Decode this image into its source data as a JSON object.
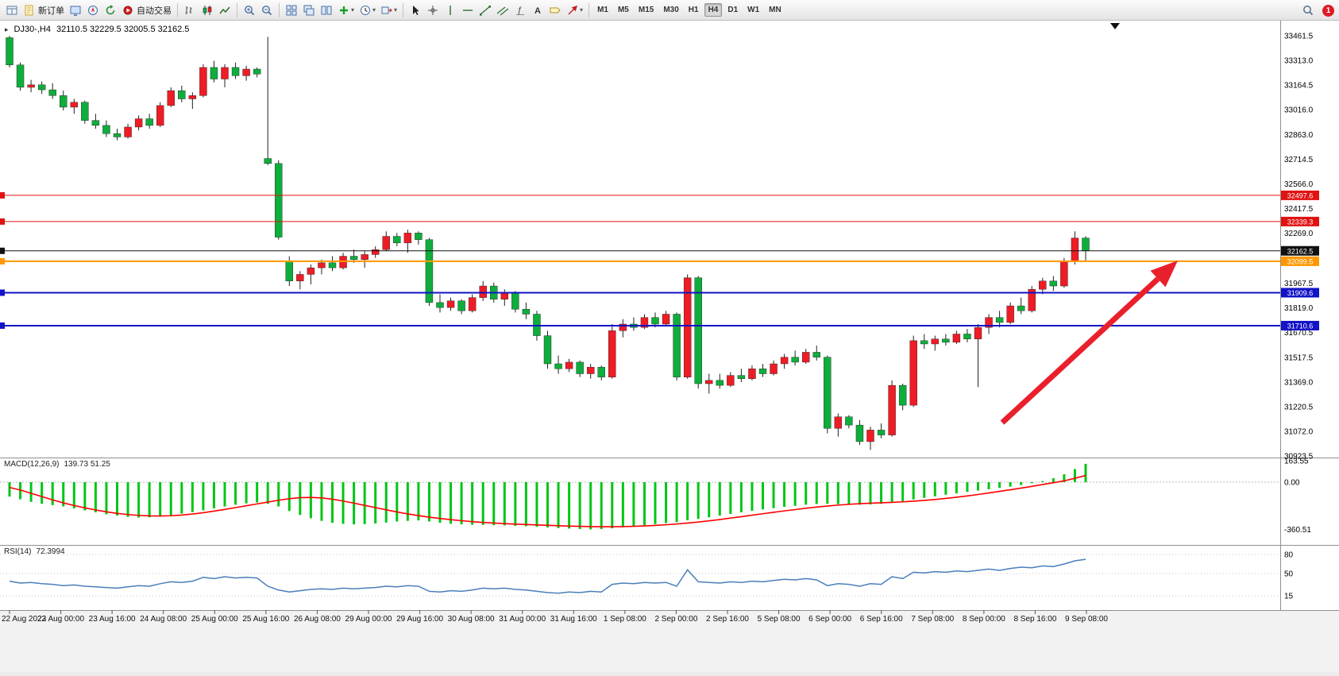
{
  "toolbar": {
    "groups": [
      {
        "name": "file",
        "items": [
          {
            "name": "new-chart",
            "icon": "window"
          },
          {
            "name": "new-order",
            "icon": "doc",
            "label": "新订单"
          },
          {
            "name": "market-watch",
            "icon": "monitor"
          },
          {
            "name": "data-window",
            "icon": "navigator"
          },
          {
            "name": "refresh",
            "icon": "refresh"
          },
          {
            "name": "auto-trading",
            "icon": "autotrade",
            "label": "自动交易"
          }
        ]
      },
      {
        "name": "chart-type",
        "items": [
          {
            "name": "bar-chart",
            "icon": "barchart"
          },
          {
            "name": "candlestick-chart",
            "icon": "candles"
          },
          {
            "name": "line-chart",
            "icon": "linechart"
          }
        ]
      },
      {
        "name": "zoom",
        "items": [
          {
            "name": "zoom-in",
            "icon": "zoomin"
          },
          {
            "name": "zoom-out",
            "icon": "zoomout"
          }
        ]
      },
      {
        "name": "arrange",
        "items": [
          {
            "name": "tile-windows",
            "icon": "tiles"
          },
          {
            "name": "cascade-windows",
            "icon": "cascade"
          },
          {
            "name": "arrange-vertical",
            "icon": "vtile"
          },
          {
            "name": "add-indicator",
            "icon": "plus",
            "caret": true
          },
          {
            "name": "period-selector",
            "icon": "clock",
            "caret": true
          },
          {
            "name": "chart-template",
            "icon": "shift",
            "caret": true
          }
        ]
      },
      {
        "name": "drawing-tools",
        "items": [
          {
            "name": "cursor-tool",
            "icon": "cursor"
          },
          {
            "name": "crosshair-tool",
            "icon": "cross"
          },
          {
            "name": "vertical-line-tool",
            "icon": "vline"
          },
          {
            "name": "horizontal-line-tool",
            "icon": "hline"
          },
          {
            "name": "trendline-tool",
            "icon": "tline"
          },
          {
            "name": "channel-tool",
            "icon": "channel"
          },
          {
            "name": "fibonacci-tool",
            "icon": "fibo"
          },
          {
            "name": "text-tool",
            "icon": "textA"
          },
          {
            "name": "label-tool",
            "icon": "label"
          },
          {
            "name": "arrows-tool",
            "icon": "arrows",
            "caret": true
          }
        ]
      }
    ],
    "timeframes": [
      "M1",
      "M5",
      "M15",
      "M30",
      "H1",
      "H4",
      "D1",
      "W1",
      "MN"
    ],
    "active_timeframe": "H4",
    "notification_count": "1"
  },
  "chart_header": {
    "symbol": "DJ30-,H4",
    "ohlc": "32110.5 32229.5 32005.5 32162.5"
  },
  "price_axis": {
    "ticks": [
      "33461.5",
      "33313.0",
      "33164.5",
      "33016.0",
      "32863.0",
      "32714.5",
      "32566.0",
      "32417.5",
      "32269.0",
      "31967.5",
      "31819.0",
      "31670.5",
      "31517.5",
      "31369.0",
      "31220.5",
      "31072.0",
      "30923.5"
    ]
  },
  "levels": [
    {
      "value": "32497.6",
      "color": "#e11212",
      "width": 1
    },
    {
      "value": "32339.3",
      "color": "#e11212",
      "width": 1
    },
    {
      "value": "32162.5",
      "color": "#111111",
      "width": 1
    },
    {
      "value": "32099.5",
      "color": "#ff9800",
      "width": 2
    },
    {
      "value": "31909.6",
      "color": "#1313c8",
      "width": 2
    },
    {
      "value": "31710.6",
      "color": "#1313c8",
      "width": 2
    }
  ],
  "time_axis": {
    "labels": [
      "22 Aug 2022",
      "23 Aug 00:00",
      "23 Aug 16:00",
      "24 Aug 08:00",
      "25 Aug 00:00",
      "25 Aug 16:00",
      "26 Aug 08:00",
      "29 Aug 00:00",
      "29 Aug 16:00",
      "30 Aug 08:00",
      "31 Aug 00:00",
      "31 Aug 16:00",
      "1 Sep 08:00",
      "2 Sep 00:00",
      "2 Sep 16:00",
      "5 Sep 08:00",
      "6 Sep 00:00",
      "6 Sep 16:00",
      "7 Sep 08:00",
      "8 Sep 00:00",
      "8 Sep 16:00",
      "9 Sep 08:00"
    ]
  },
  "chart_data": {
    "type": "candlestick",
    "symbol": "DJ30-",
    "timeframe": "H4",
    "y_range": [
      30923.5,
      33461.5
    ],
    "colors": {
      "bull": "#ee1c25",
      "bear": "#0fad3c",
      "wick": "#222222"
    },
    "candles": [
      [
        33450,
        33461,
        33270,
        33285
      ],
      [
        33285,
        33300,
        33130,
        33150
      ],
      [
        33150,
        33195,
        33120,
        33165
      ],
      [
        33165,
        33185,
        33110,
        33135
      ],
      [
        33135,
        33175,
        33080,
        33100
      ],
      [
        33100,
        33130,
        33010,
        33030
      ],
      [
        33030,
        33080,
        32990,
        33060
      ],
      [
        33060,
        33070,
        32930,
        32950
      ],
      [
        32950,
        32990,
        32900,
        32920
      ],
      [
        32920,
        32950,
        32850,
        32870
      ],
      [
        32870,
        32900,
        32830,
        32850
      ],
      [
        32850,
        32930,
        32840,
        32910
      ],
      [
        32910,
        32980,
        32890,
        32960
      ],
      [
        32960,
        32990,
        32900,
        32920
      ],
      [
        32920,
        33060,
        32910,
        33040
      ],
      [
        33040,
        33150,
        33030,
        33130
      ],
      [
        33130,
        33160,
        33060,
        33080
      ],
      [
        33080,
        33120,
        33020,
        33100
      ],
      [
        33100,
        33290,
        33090,
        33270
      ],
      [
        33270,
        33310,
        33180,
        33200
      ],
      [
        33200,
        33290,
        33150,
        33270
      ],
      [
        33270,
        33300,
        33200,
        33220
      ],
      [
        33220,
        33280,
        33190,
        33260
      ],
      [
        33260,
        33270,
        33210,
        33230
      ],
      [
        32720,
        33455,
        32680,
        32690
      ],
      [
        32690,
        32710,
        32230,
        32245
      ],
      [
        32100,
        32130,
        31950,
        31980
      ],
      [
        31980,
        32040,
        31930,
        32020
      ],
      [
        32020,
        32080,
        31960,
        32060
      ],
      [
        32060,
        32110,
        32020,
        32090
      ],
      [
        32090,
        32130,
        32040,
        32060
      ],
      [
        32060,
        32150,
        32050,
        32130
      ],
      [
        32130,
        32170,
        32090,
        32110
      ],
      [
        32110,
        32160,
        32060,
        32140
      ],
      [
        32140,
        32190,
        32120,
        32170
      ],
      [
        32170,
        32280,
        32160,
        32250
      ],
      [
        32250,
        32270,
        32190,
        32210
      ],
      [
        32210,
        32290,
        32150,
        32270
      ],
      [
        32270,
        32280,
        32200,
        32230
      ],
      [
        32230,
        32240,
        31830,
        31850
      ],
      [
        31850,
        31900,
        31790,
        31820
      ],
      [
        31820,
        31880,
        31800,
        31860
      ],
      [
        31860,
        31870,
        31780,
        31800
      ],
      [
        31800,
        31900,
        31790,
        31880
      ],
      [
        31880,
        31980,
        31860,
        31950
      ],
      [
        31950,
        31970,
        31850,
        31870
      ],
      [
        31870,
        31930,
        31830,
        31910
      ],
      [
        31910,
        31920,
        31790,
        31810
      ],
      [
        31810,
        31850,
        31750,
        31780
      ],
      [
        31780,
        31800,
        31620,
        31650
      ],
      [
        31650,
        31680,
        31450,
        31480
      ],
      [
        31480,
        31530,
        31420,
        31450
      ],
      [
        31450,
        31510,
        31430,
        31490
      ],
      [
        31490,
        31500,
        31400,
        31420
      ],
      [
        31420,
        31480,
        31390,
        31460
      ],
      [
        31460,
        31470,
        31380,
        31400
      ],
      [
        31400,
        31720,
        31390,
        31680
      ],
      [
        31680,
        31750,
        31640,
        31720
      ],
      [
        31720,
        31760,
        31680,
        31700
      ],
      [
        31700,
        31780,
        31690,
        31760
      ],
      [
        31760,
        31790,
        31700,
        31720
      ],
      [
        31720,
        31800,
        31710,
        31780
      ],
      [
        31780,
        31790,
        31380,
        31400
      ],
      [
        31400,
        32020,
        31390,
        32000
      ],
      [
        32000,
        32010,
        31330,
        31360
      ],
      [
        31360,
        31420,
        31300,
        31380
      ],
      [
        31380,
        31420,
        31330,
        31350
      ],
      [
        31350,
        31430,
        31340,
        31410
      ],
      [
        31410,
        31450,
        31370,
        31390
      ],
      [
        31390,
        31470,
        31380,
        31450
      ],
      [
        31450,
        31480,
        31400,
        31420
      ],
      [
        31420,
        31500,
        31410,
        31480
      ],
      [
        31480,
        31540,
        31450,
        31520
      ],
      [
        31520,
        31560,
        31470,
        31490
      ],
      [
        31490,
        31570,
        31480,
        31550
      ],
      [
        31550,
        31590,
        31500,
        31520
      ],
      [
        31520,
        31530,
        31060,
        31090
      ],
      [
        31090,
        31180,
        31040,
        31160
      ],
      [
        31160,
        31170,
        31090,
        31110
      ],
      [
        31110,
        31140,
        30990,
        31010
      ],
      [
        31010,
        31100,
        30960,
        31080
      ],
      [
        31080,
        31120,
        31030,
        31050
      ],
      [
        31050,
        31380,
        31040,
        31350
      ],
      [
        31350,
        31360,
        31200,
        31230
      ],
      [
        31230,
        31650,
        31220,
        31620
      ],
      [
        31620,
        31660,
        31570,
        31600
      ],
      [
        31600,
        31650,
        31560,
        31630
      ],
      [
        31630,
        31660,
        31590,
        31610
      ],
      [
        31610,
        31680,
        31600,
        31660
      ],
      [
        31660,
        31690,
        31610,
        31630
      ],
      [
        31630,
        31720,
        31340,
        31700
      ],
      [
        31700,
        31780,
        31660,
        31760
      ],
      [
        31760,
        31800,
        31700,
        31730
      ],
      [
        31730,
        31850,
        31720,
        31830
      ],
      [
        31830,
        31880,
        31780,
        31800
      ],
      [
        31800,
        31950,
        31790,
        31930
      ],
      [
        31930,
        32000,
        31900,
        31980
      ],
      [
        31980,
        32010,
        31920,
        31950
      ],
      [
        31950,
        32120,
        31940,
        32100
      ],
      [
        32100,
        32280,
        32080,
        32240
      ],
      [
        32240,
        32250,
        32100,
        32162
      ]
    ],
    "macd": {
      "label": "MACD(12,26,9)",
      "values_label": "139.73 51.25",
      "scale": [
        "163.55",
        "0.00",
        "-360.51"
      ],
      "histogram_color": "#00c614",
      "signal_color": "#ff0000",
      "histogram": [
        -110,
        -130,
        -150,
        -165,
        -175,
        -185,
        -200,
        -215,
        -230,
        -245,
        -255,
        -265,
        -270,
        -268,
        -262,
        -252,
        -240,
        -228,
        -215,
        -200,
        -185,
        -172,
        -162,
        -155,
        -165,
        -185,
        -220,
        -250,
        -275,
        -295,
        -310,
        -318,
        -322,
        -320,
        -315,
        -308,
        -300,
        -295,
        -292,
        -300,
        -310,
        -318,
        -322,
        -325,
        -326,
        -328,
        -330,
        -333,
        -336,
        -340,
        -345,
        -350,
        -354,
        -357,
        -360,
        -358,
        -352,
        -344,
        -336,
        -328,
        -320,
        -312,
        -305,
        -290,
        -280,
        -268,
        -255,
        -242,
        -230,
        -218,
        -208,
        -198,
        -188,
        -180,
        -172,
        -166,
        -165,
        -168,
        -170,
        -172,
        -170,
        -165,
        -155,
        -145,
        -132,
        -120,
        -108,
        -96,
        -85,
        -74,
        -64,
        -54,
        -44,
        -34,
        -22,
        -8,
        8,
        30,
        60,
        100,
        140
      ],
      "signal": [
        -40,
        -60,
        -85,
        -110,
        -135,
        -158,
        -178,
        -196,
        -212,
        -226,
        -238,
        -247,
        -253,
        -257,
        -258,
        -256,
        -251,
        -243,
        -233,
        -221,
        -208,
        -194,
        -180,
        -166,
        -152,
        -138,
        -126,
        -118,
        -116,
        -120,
        -130,
        -144,
        -160,
        -177,
        -194,
        -211,
        -227,
        -242,
        -255,
        -267,
        -277,
        -286,
        -294,
        -301,
        -307,
        -312,
        -316,
        -320,
        -323,
        -326,
        -329,
        -332,
        -335,
        -337,
        -339,
        -340,
        -340,
        -339,
        -337,
        -334,
        -330,
        -325,
        -319,
        -312,
        -304,
        -295,
        -285,
        -274,
        -263,
        -252,
        -241,
        -230,
        -219,
        -209,
        -199,
        -190,
        -182,
        -175,
        -169,
        -164,
        -160,
        -157,
        -154,
        -150,
        -145,
        -139,
        -132,
        -124,
        -115,
        -105,
        -94,
        -82,
        -70,
        -58,
        -45,
        -32,
        -18,
        -4,
        10,
        30,
        51
      ]
    },
    "rsi": {
      "label": "RSI(14)",
      "value_label": "72.3994",
      "levels": [
        "80",
        "50",
        "15"
      ],
      "color": "#4a7ebb",
      "series": [
        38,
        35,
        36,
        34,
        33,
        31,
        32,
        30,
        29,
        28,
        27,
        29,
        31,
        30,
        34,
        37,
        36,
        38,
        44,
        42,
        45,
        43,
        44,
        43,
        30,
        24,
        21,
        23,
        25,
        26,
        25,
        27,
        26,
        27,
        28,
        30,
        29,
        31,
        30,
        22,
        21,
        23,
        22,
        24,
        27,
        26,
        27,
        25,
        24,
        22,
        20,
        19,
        21,
        20,
        22,
        21,
        33,
        35,
        34,
        36,
        35,
        36,
        30,
        56,
        37,
        36,
        35,
        37,
        36,
        38,
        37,
        39,
        41,
        40,
        42,
        40,
        31,
        34,
        33,
        30,
        34,
        33,
        45,
        42,
        52,
        51,
        53,
        52,
        54,
        53,
        55,
        57,
        55,
        58,
        60,
        59,
        62,
        61,
        65,
        70,
        72.4
      ]
    }
  },
  "annotation": {
    "arrow": {
      "from": [
        1262,
        532
      ],
      "to": [
        1483,
        328
      ],
      "color": "#e9202c"
    }
  }
}
